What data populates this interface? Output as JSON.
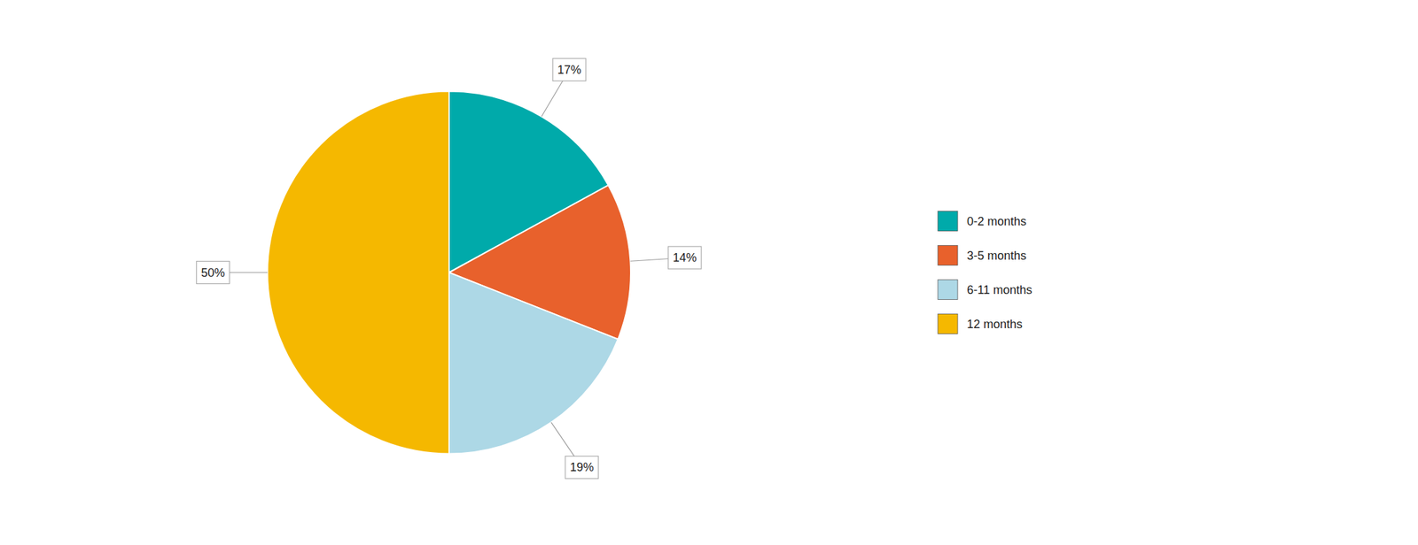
{
  "chart_data": {
    "type": "pie",
    "categories": [
      "0-2 months",
      "3-5 months",
      "6-11 months",
      "12 months"
    ],
    "values": [
      17,
      14,
      19,
      50
    ],
    "value_labels": [
      "17%",
      "14%",
      "19%",
      "50%"
    ],
    "colors": [
      "#00AAAA",
      "#E8612C",
      "#ADD8E6",
      "#F5B800"
    ],
    "data_labels": true,
    "legend": "right"
  }
}
